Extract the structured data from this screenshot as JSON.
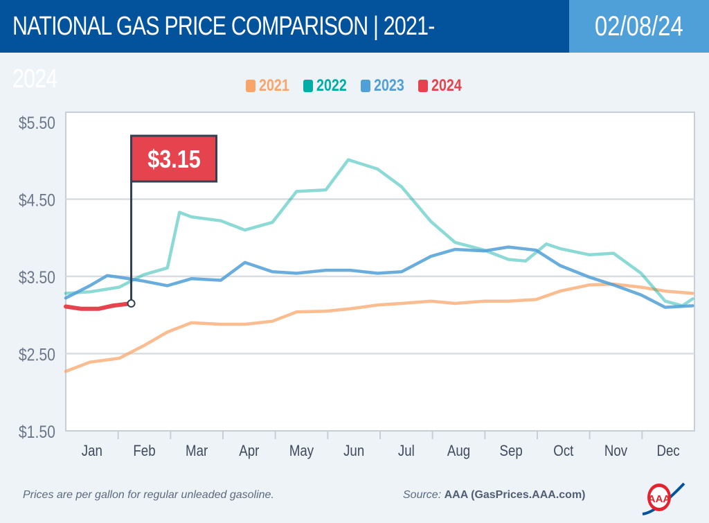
{
  "header": {
    "title": "NATIONAL GAS PRICE COMPARISON | 2021-2024",
    "date": "02/08/24"
  },
  "colors": {
    "header_bg": "#02529c",
    "date_bg": "#4f9fd8",
    "2021": "#f9a56a",
    "2022": "#00ada4",
    "2023": "#4f9fd8",
    "2024": "#e5434e"
  },
  "chart_data": {
    "type": "line",
    "title": "NATIONAL GAS PRICE COMPARISON | 2021-2024",
    "xlabel": "",
    "ylabel": "",
    "ylim": [
      1.5,
      5.5
    ],
    "yticks": [
      "$5.50",
      "$4.50",
      "$3.50",
      "$2.50",
      "$1.50"
    ],
    "ytick_values": [
      5.5,
      4.5,
      3.5,
      2.5,
      1.5
    ],
    "xticks": [
      "Jan",
      "Feb",
      "Mar",
      "Apr",
      "May",
      "Jun",
      "Jul",
      "Aug",
      "Sep",
      "Oct",
      "Nov",
      "Dec"
    ],
    "grid": true,
    "legend_position": "top-center",
    "annotation": {
      "label": "$3.15",
      "x": "02-08",
      "y": 3.15,
      "series": "2024"
    },
    "series": [
      {
        "name": "2021",
        "color": "#f9a56a",
        "x": [
          "01-01",
          "01-15",
          "02-01",
          "02-15",
          "03-01",
          "03-15",
          "04-01",
          "04-15",
          "05-01",
          "05-15",
          "06-01",
          "06-15",
          "07-01",
          "07-15",
          "08-01",
          "08-15",
          "09-01",
          "09-15",
          "10-01",
          "10-15",
          "11-01",
          "11-15",
          "12-01",
          "12-15",
          "12-31"
        ],
        "y": [
          2.27,
          2.39,
          2.44,
          2.6,
          2.78,
          2.9,
          2.88,
          2.88,
          2.92,
          3.04,
          3.05,
          3.08,
          3.13,
          3.15,
          3.18,
          3.15,
          3.18,
          3.18,
          3.2,
          3.31,
          3.39,
          3.4,
          3.36,
          3.31,
          3.28
        ]
      },
      {
        "name": "2022",
        "color": "#00ada4",
        "x": [
          "01-01",
          "01-15",
          "02-01",
          "02-15",
          "03-01",
          "03-08",
          "03-15",
          "04-01",
          "04-15",
          "05-01",
          "05-15",
          "06-01",
          "06-14",
          "07-01",
          "07-15",
          "08-01",
          "08-15",
          "09-01",
          "09-15",
          "09-25",
          "10-07",
          "10-15",
          "11-01",
          "11-15",
          "12-01",
          "12-15",
          "12-25",
          "12-31"
        ],
        "y": [
          3.28,
          3.3,
          3.36,
          3.52,
          3.61,
          4.33,
          4.27,
          4.22,
          4.1,
          4.2,
          4.6,
          4.62,
          5.01,
          4.89,
          4.66,
          4.21,
          3.94,
          3.84,
          3.72,
          3.7,
          3.92,
          3.86,
          3.78,
          3.8,
          3.54,
          3.18,
          3.12,
          3.21
        ]
      },
      {
        "name": "2023",
        "color": "#4f9fd8",
        "x": [
          "01-01",
          "01-15",
          "01-25",
          "02-01",
          "02-15",
          "03-01",
          "03-15",
          "04-01",
          "04-15",
          "05-01",
          "05-15",
          "06-01",
          "06-15",
          "07-01",
          "07-15",
          "08-01",
          "08-15",
          "09-01",
          "09-15",
          "10-01",
          "10-15",
          "11-01",
          "11-15",
          "12-01",
          "12-15",
          "12-31"
        ],
        "y": [
          3.22,
          3.38,
          3.51,
          3.49,
          3.44,
          3.38,
          3.47,
          3.45,
          3.68,
          3.56,
          3.54,
          3.58,
          3.58,
          3.54,
          3.56,
          3.76,
          3.85,
          3.83,
          3.88,
          3.84,
          3.64,
          3.49,
          3.39,
          3.26,
          3.1,
          3.12
        ]
      },
      {
        "name": "2024",
        "color": "#e5434e",
        "x": [
          "01-01",
          "01-10",
          "01-20",
          "01-28",
          "02-08"
        ],
        "y": [
          3.11,
          3.08,
          3.08,
          3.12,
          3.15
        ]
      }
    ]
  },
  "footer": {
    "note": "Prices are per gallon for regular unleaded gasoline.",
    "source_label": "Source:",
    "source": "AAA (GasPrices.AAA.com)",
    "logo_text": "AAA"
  }
}
